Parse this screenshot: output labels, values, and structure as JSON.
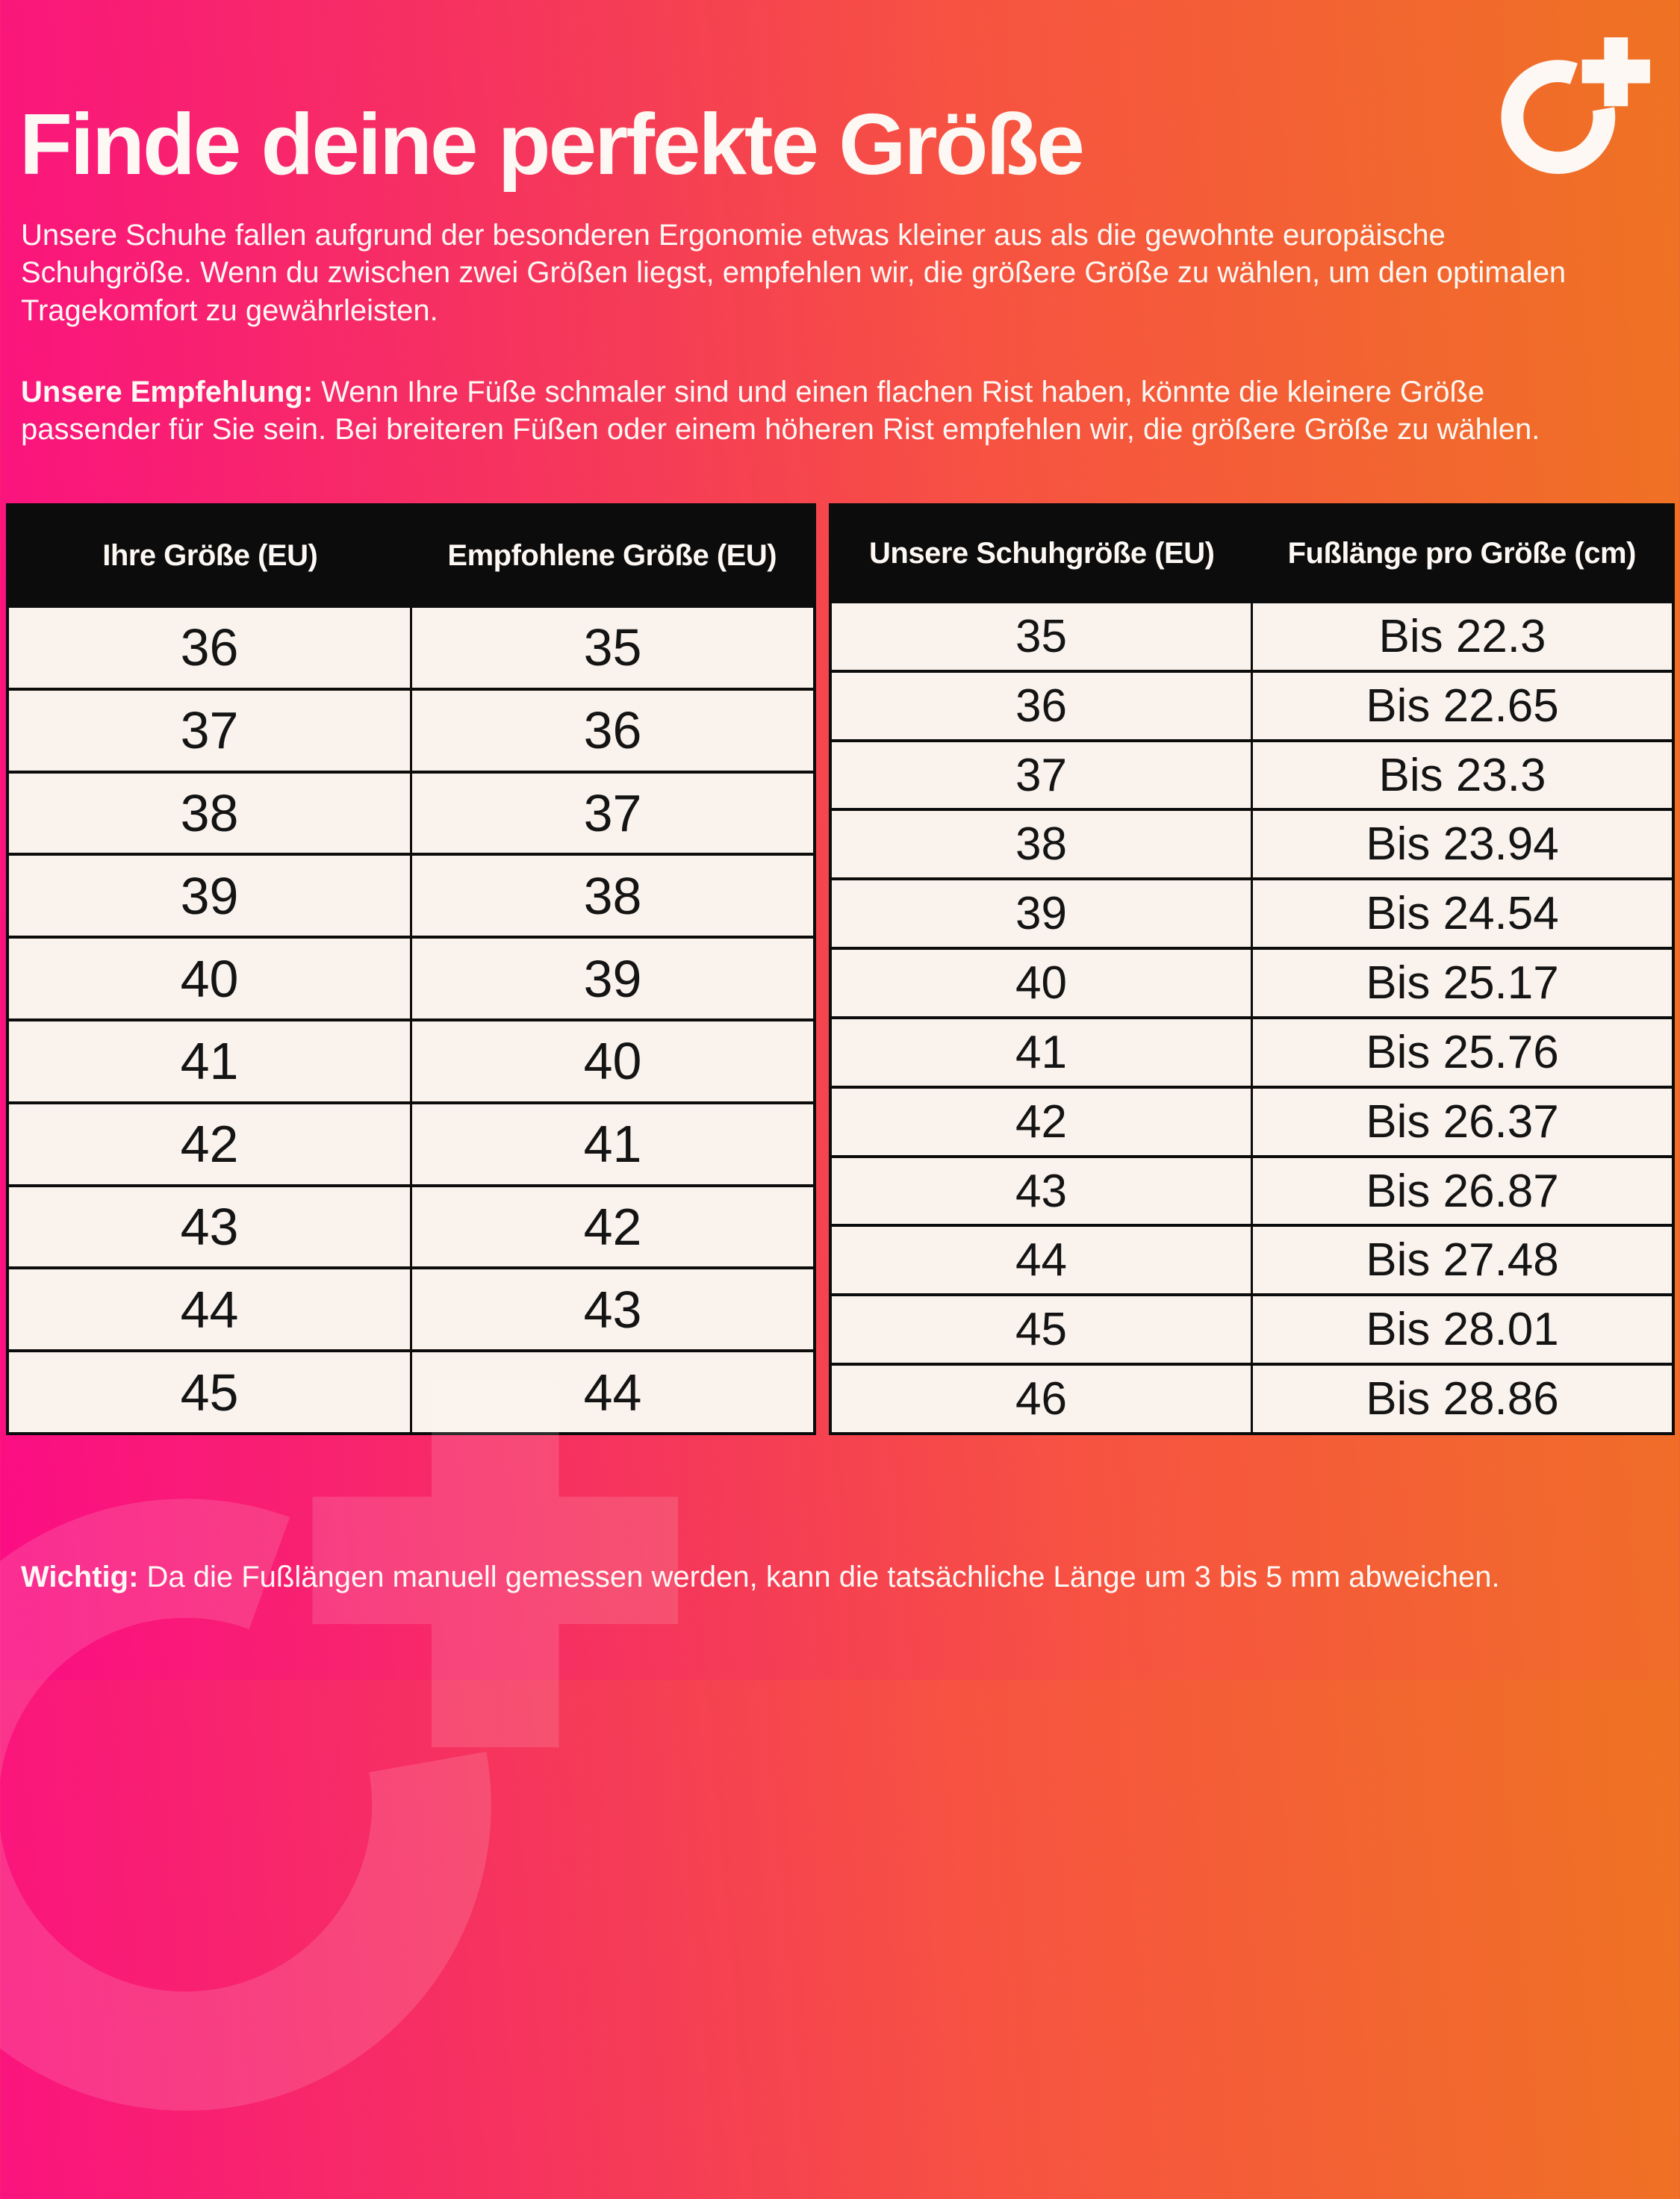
{
  "page": {
    "title": "Finde deine perfekte Größe",
    "intro": "Unsere Schuhe fallen aufgrund der besonderen Ergonomie etwas kleiner aus als die gewohnte europäische Schuhgröße. Wenn du zwischen zwei Größen liegst, empfehlen wir, die größere Größe zu wählen, um den optimalen Tragekomfort zu gewährleisten.",
    "recommendation": {
      "label": "Unsere Empfehlung:",
      "text": " Wenn Ihre Füße schmaler sind und einen flachen Rist haben, könnte die kleinere Größe passender für Sie sein. Bei breiteren Füßen oder einem höheren Rist empfehlen wir, die größere Größe zu wählen."
    },
    "note": {
      "label": "Wichtig:",
      "text": " Da die Fußlängen manuell gemessen werden, kann die tatsächliche Länge um 3 bis 5 mm abweichen."
    }
  },
  "brand": {
    "logo_name": "o-plus-logo"
  },
  "colors": {
    "gradient_left": "#fb0d84",
    "gradient_mid": "#f75242",
    "gradient_right": "#ef7323",
    "table_header_bg": "#0c0c0c",
    "table_header_text": "#fdf8f4",
    "cell_bg": "#faf2ec",
    "cell_text": "#141414"
  },
  "tables": [
    {
      "name": "size-recommendation",
      "headers": [
        "Ihre Größe (EU)",
        "Empfohlene Größe (EU)"
      ],
      "rows": [
        [
          "36",
          "35"
        ],
        [
          "37",
          "36"
        ],
        [
          "38",
          "37"
        ],
        [
          "39",
          "38"
        ],
        [
          "40",
          "39"
        ],
        [
          "41",
          "40"
        ],
        [
          "42",
          "41"
        ],
        [
          "43",
          "42"
        ],
        [
          "44",
          "43"
        ],
        [
          "45",
          "44"
        ]
      ]
    },
    {
      "name": "foot-length",
      "headers": [
        "Unsere Schuhgröße (EU)",
        "Fußlänge pro Größe (cm)"
      ],
      "rows": [
        [
          "35",
          "Bis 22.3"
        ],
        [
          "36",
          "Bis 22.65"
        ],
        [
          "37",
          "Bis 23.3"
        ],
        [
          "38",
          "Bis 23.94"
        ],
        [
          "39",
          "Bis 24.54"
        ],
        [
          "40",
          "Bis 25.17"
        ],
        [
          "41",
          "Bis 25.76"
        ],
        [
          "42",
          "Bis 26.37"
        ],
        [
          "43",
          "Bis 26.87"
        ],
        [
          "44",
          "Bis 27.48"
        ],
        [
          "45",
          "Bis 28.01"
        ],
        [
          "46",
          "Bis 28.86"
        ]
      ]
    }
  ]
}
